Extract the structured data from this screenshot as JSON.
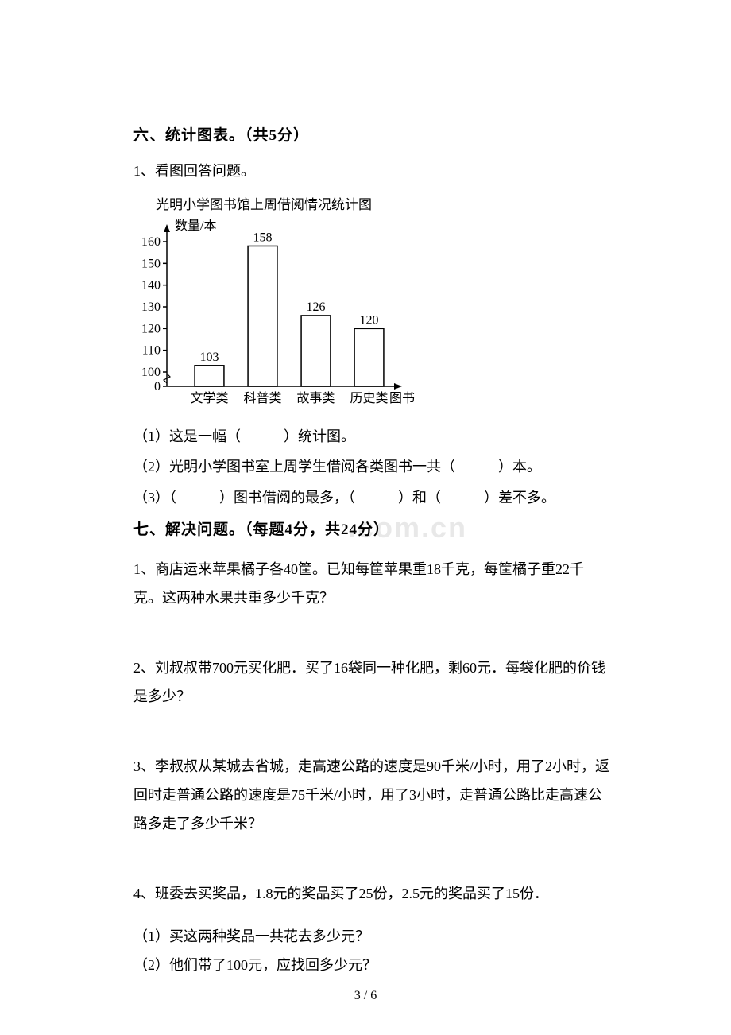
{
  "section6": {
    "heading": "六、统计图表。（共5分）",
    "q1_label": "1、看图回答问题。",
    "chart": {
      "title": "光明小学图书馆上周借阅情况统计图",
      "y_title": "数量/本",
      "x_title": "图书",
      "type": "bar",
      "categories": [
        "文学类",
        "科普类",
        "故事类",
        "历史类"
      ],
      "values": [
        103,
        158,
        126,
        120
      ],
      "ylim": [
        100,
        160
      ],
      "ytick_step": 10,
      "yticks": [
        0,
        100,
        110,
        120,
        130,
        140,
        150,
        160
      ],
      "bar_fill": "#ffffff",
      "bar_stroke": "#000000",
      "background": "#ffffff",
      "axis_color": "#000000",
      "label_fontsize": 16,
      "bar_width_ratio": 0.55
    },
    "sub1_prefix": "（1）这是一幅（",
    "sub1_suffix": "）统计图。",
    "sub2_prefix": "（2）光明小学图书室上周学生借阅各类图书一共（",
    "sub2_suffix": "）本。",
    "sub3_a": "（3）（",
    "sub3_b": "）图书借阅的最多，（",
    "sub3_c": "）和（",
    "sub3_d": "）差不多。"
  },
  "section7": {
    "heading": "七、解决问题。（每题4分，共24分）",
    "watermark": ".com.cn",
    "p1": "1、商店运来苹果橘子各40筐。已知每筐苹果重18千克，每筐橘子重22千克。这两种水果共重多少千克？",
    "p2": "2、刘叔叔带700元买化肥．买了16袋同一种化肥，剩60元．每袋化肥的价钱是多少？",
    "p3": "3、李叔叔从某城去省城，走高速公路的速度是90千米/小时，用了2小时，返回时走普通公路的速度是75千米/小时，用了3小时，走普通公路比走高速公路多走了多少千米？",
    "p4": "4、班委去买奖品，1.8元的奖品买了25份，2.5元的奖品买了15份．",
    "p4a": "（1）买这两种奖品一共花去多少元？",
    "p4b": "（2）他们带了100元，应找回多少元？"
  },
  "page_num": "3 / 6"
}
